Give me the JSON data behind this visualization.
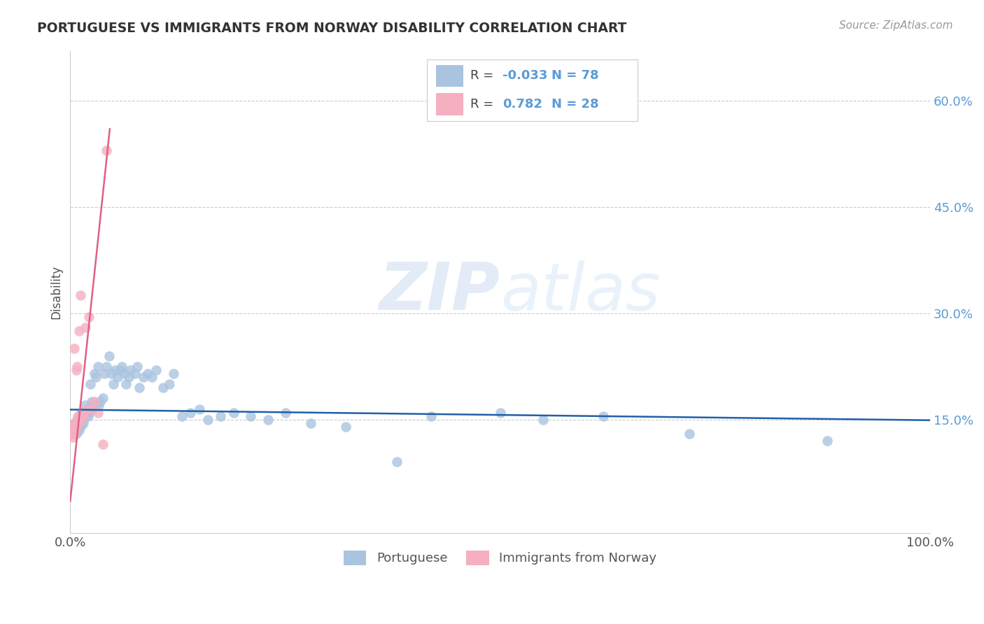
{
  "title": "PORTUGUESE VS IMMIGRANTS FROM NORWAY DISABILITY CORRELATION CHART",
  "source": "Source: ZipAtlas.com",
  "ylabel": "Disability",
  "xlim": [
    0.0,
    1.0
  ],
  "ylim": [
    -0.01,
    0.67
  ],
  "yticks": [
    0.15,
    0.3,
    0.45,
    0.6
  ],
  "ytick_labels": [
    "15.0%",
    "30.0%",
    "45.0%",
    "60.0%"
  ],
  "portuguese_color": "#aac4e0",
  "norway_color": "#f5afc0",
  "trendline_blue": "#2060a8",
  "trendline_pink": "#e06080",
  "legend_R_blue": "-0.033",
  "legend_N_blue": "78",
  "legend_R_pink": "0.782",
  "legend_N_pink": "28",
  "watermark_zip": "ZIP",
  "watermark_atlas": "atlas",
  "portuguese_x": [
    0.003,
    0.004,
    0.005,
    0.005,
    0.006,
    0.007,
    0.007,
    0.008,
    0.008,
    0.009,
    0.01,
    0.01,
    0.011,
    0.012,
    0.012,
    0.013,
    0.013,
    0.014,
    0.015,
    0.015,
    0.016,
    0.017,
    0.018,
    0.019,
    0.02,
    0.021,
    0.022,
    0.023,
    0.025,
    0.026,
    0.027,
    0.028,
    0.03,
    0.032,
    0.033,
    0.035,
    0.038,
    0.04,
    0.042,
    0.045,
    0.048,
    0.05,
    0.052,
    0.055,
    0.058,
    0.06,
    0.063,
    0.065,
    0.068,
    0.07,
    0.075,
    0.078,
    0.08,
    0.085,
    0.09,
    0.095,
    0.1,
    0.108,
    0.115,
    0.12,
    0.13,
    0.14,
    0.15,
    0.16,
    0.175,
    0.19,
    0.21,
    0.23,
    0.25,
    0.28,
    0.32,
    0.38,
    0.42,
    0.5,
    0.55,
    0.62,
    0.72,
    0.88
  ],
  "portuguese_y": [
    0.14,
    0.13,
    0.145,
    0.135,
    0.14,
    0.13,
    0.145,
    0.135,
    0.15,
    0.14,
    0.145,
    0.135,
    0.15,
    0.14,
    0.15,
    0.145,
    0.16,
    0.15,
    0.155,
    0.145,
    0.16,
    0.155,
    0.17,
    0.16,
    0.165,
    0.155,
    0.16,
    0.2,
    0.175,
    0.165,
    0.17,
    0.215,
    0.21,
    0.225,
    0.17,
    0.175,
    0.18,
    0.215,
    0.225,
    0.24,
    0.215,
    0.2,
    0.22,
    0.21,
    0.22,
    0.225,
    0.215,
    0.2,
    0.21,
    0.22,
    0.215,
    0.225,
    0.195,
    0.21,
    0.215,
    0.21,
    0.22,
    0.195,
    0.2,
    0.215,
    0.155,
    0.16,
    0.165,
    0.15,
    0.155,
    0.16,
    0.155,
    0.15,
    0.16,
    0.145,
    0.14,
    0.09,
    0.155,
    0.16,
    0.15,
    0.155,
    0.13,
    0.12
  ],
  "norway_x": [
    0.002,
    0.003,
    0.003,
    0.004,
    0.004,
    0.005,
    0.005,
    0.006,
    0.006,
    0.007,
    0.007,
    0.008,
    0.008,
    0.009,
    0.01,
    0.011,
    0.012,
    0.013,
    0.015,
    0.016,
    0.018,
    0.02,
    0.022,
    0.025,
    0.028,
    0.032,
    0.038,
    0.042
  ],
  "norway_y": [
    0.13,
    0.125,
    0.14,
    0.13,
    0.135,
    0.145,
    0.25,
    0.135,
    0.145,
    0.14,
    0.22,
    0.145,
    0.225,
    0.155,
    0.275,
    0.155,
    0.325,
    0.15,
    0.155,
    0.16,
    0.28,
    0.165,
    0.295,
    0.165,
    0.175,
    0.16,
    0.115,
    0.53
  ],
  "blue_trend_x": [
    0.0,
    1.0
  ],
  "blue_trend_y": [
    0.164,
    0.149
  ],
  "pink_trend_x": [
    0.0,
    0.046
  ],
  "pink_trend_y": [
    0.035,
    0.56
  ]
}
